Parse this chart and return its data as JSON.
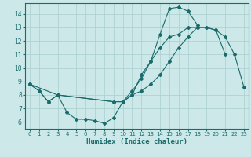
{
  "xlabel": "Humidex (Indice chaleur)",
  "xlim": [
    -0.5,
    23.5
  ],
  "ylim": [
    5.5,
    14.8
  ],
  "xticks": [
    0,
    1,
    2,
    3,
    4,
    5,
    6,
    7,
    8,
    9,
    10,
    11,
    12,
    13,
    14,
    15,
    16,
    17,
    18,
    19,
    20,
    21,
    22,
    23
  ],
  "yticks": [
    6,
    7,
    8,
    9,
    10,
    11,
    12,
    13,
    14
  ],
  "background_color": "#cce8e8",
  "grid_color": "#aacece",
  "line_color": "#1a6b6b",
  "line1_x": [
    0,
    1,
    2,
    3,
    4,
    5,
    6,
    7,
    8,
    9,
    10,
    11,
    12,
    13,
    14,
    15,
    16,
    17,
    18,
    19,
    20,
    21,
    22,
    23
  ],
  "line1_y": [
    8.8,
    8.3,
    7.5,
    8.0,
    6.7,
    6.2,
    6.2,
    6.1,
    5.9,
    6.3,
    7.5,
    8.0,
    9.5,
    10.5,
    12.5,
    14.4,
    14.5,
    14.2,
    13.2,
    null,
    null,
    null,
    null,
    null
  ],
  "line2_x": [
    0,
    3,
    9,
    10,
    11,
    12,
    13,
    14,
    15,
    16,
    17,
    18,
    19,
    20,
    21,
    22,
    23
  ],
  "line2_y": [
    8.8,
    8.0,
    7.5,
    7.5,
    8.3,
    9.2,
    10.5,
    11.5,
    12.3,
    12.5,
    13.0,
    13.0,
    13.0,
    12.8,
    11.0,
    null,
    null
  ],
  "line3_x": [
    0,
    1,
    2,
    3,
    9,
    10,
    11,
    12,
    13,
    14,
    15,
    16,
    17,
    18,
    19,
    20,
    21,
    22,
    23
  ],
  "line3_y": [
    8.8,
    8.3,
    7.5,
    8.0,
    7.5,
    7.5,
    8.0,
    8.3,
    8.8,
    9.5,
    10.5,
    11.5,
    12.3,
    13.0,
    13.0,
    12.8,
    12.3,
    11.0,
    8.6
  ]
}
